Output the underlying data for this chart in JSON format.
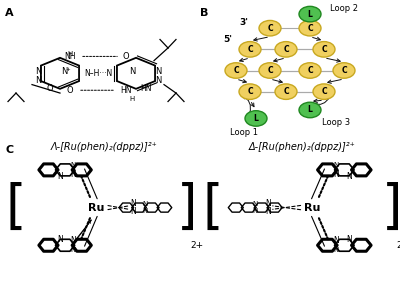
{
  "bg_color": "#ffffff",
  "font_color": "#000000",
  "panel_A_label": "A",
  "panel_B_label": "B",
  "panel_C_label": "C",
  "panel_B": {
    "node_C_color": "#f0d060",
    "node_L_color": "#50c050",
    "node_C_border": "#c8a820",
    "node_L_border": "#208820"
  },
  "label_lambda": "Λ-[Ru(phen)₂(dppz)]²⁺",
  "label_delta": "Δ-[Ru(phen)₂(dppz)]²⁺"
}
